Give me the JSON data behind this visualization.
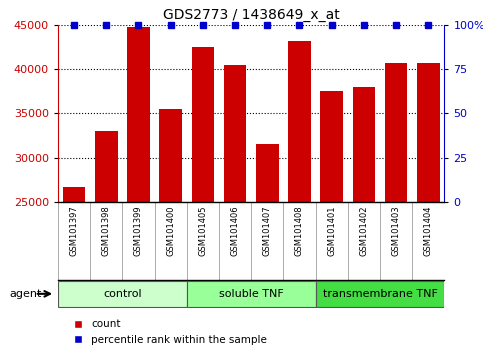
{
  "title": "GDS2773 / 1438649_x_at",
  "samples": [
    "GSM101397",
    "GSM101398",
    "GSM101399",
    "GSM101400",
    "GSM101405",
    "GSM101406",
    "GSM101407",
    "GSM101408",
    "GSM101401",
    "GSM101402",
    "GSM101403",
    "GSM101404"
  ],
  "counts": [
    26700,
    33000,
    44800,
    35500,
    42500,
    40500,
    31500,
    43200,
    37500,
    38000,
    40700,
    40700
  ],
  "percentile": [
    100,
    100,
    100,
    100,
    100,
    100,
    100,
    100,
    100,
    100,
    100,
    100
  ],
  "ylim_left": [
    25000,
    45000
  ],
  "ylim_right": [
    0,
    100
  ],
  "yticks_left": [
    25000,
    30000,
    35000,
    40000,
    45000
  ],
  "yticks_right": [
    0,
    25,
    50,
    75,
    100
  ],
  "yticklabels_right": [
    "0",
    "25",
    "50",
    "75",
    "100%"
  ],
  "bar_color": "#cc0000",
  "dot_color": "#0000cc",
  "groups": [
    {
      "label": "control",
      "start": 0,
      "end": 4,
      "color": "#ccffcc"
    },
    {
      "label": "soluble TNF",
      "start": 4,
      "end": 8,
      "color": "#99ff99"
    },
    {
      "label": "transmembrane TNF",
      "start": 8,
      "end": 12,
      "color": "#44dd44"
    }
  ],
  "agent_label": "agent",
  "legend_count_label": "count",
  "legend_percentile_label": "percentile rank within the sample",
  "background_color": "#ffffff",
  "tick_area_color": "#cccccc",
  "bar_width": 0.7
}
